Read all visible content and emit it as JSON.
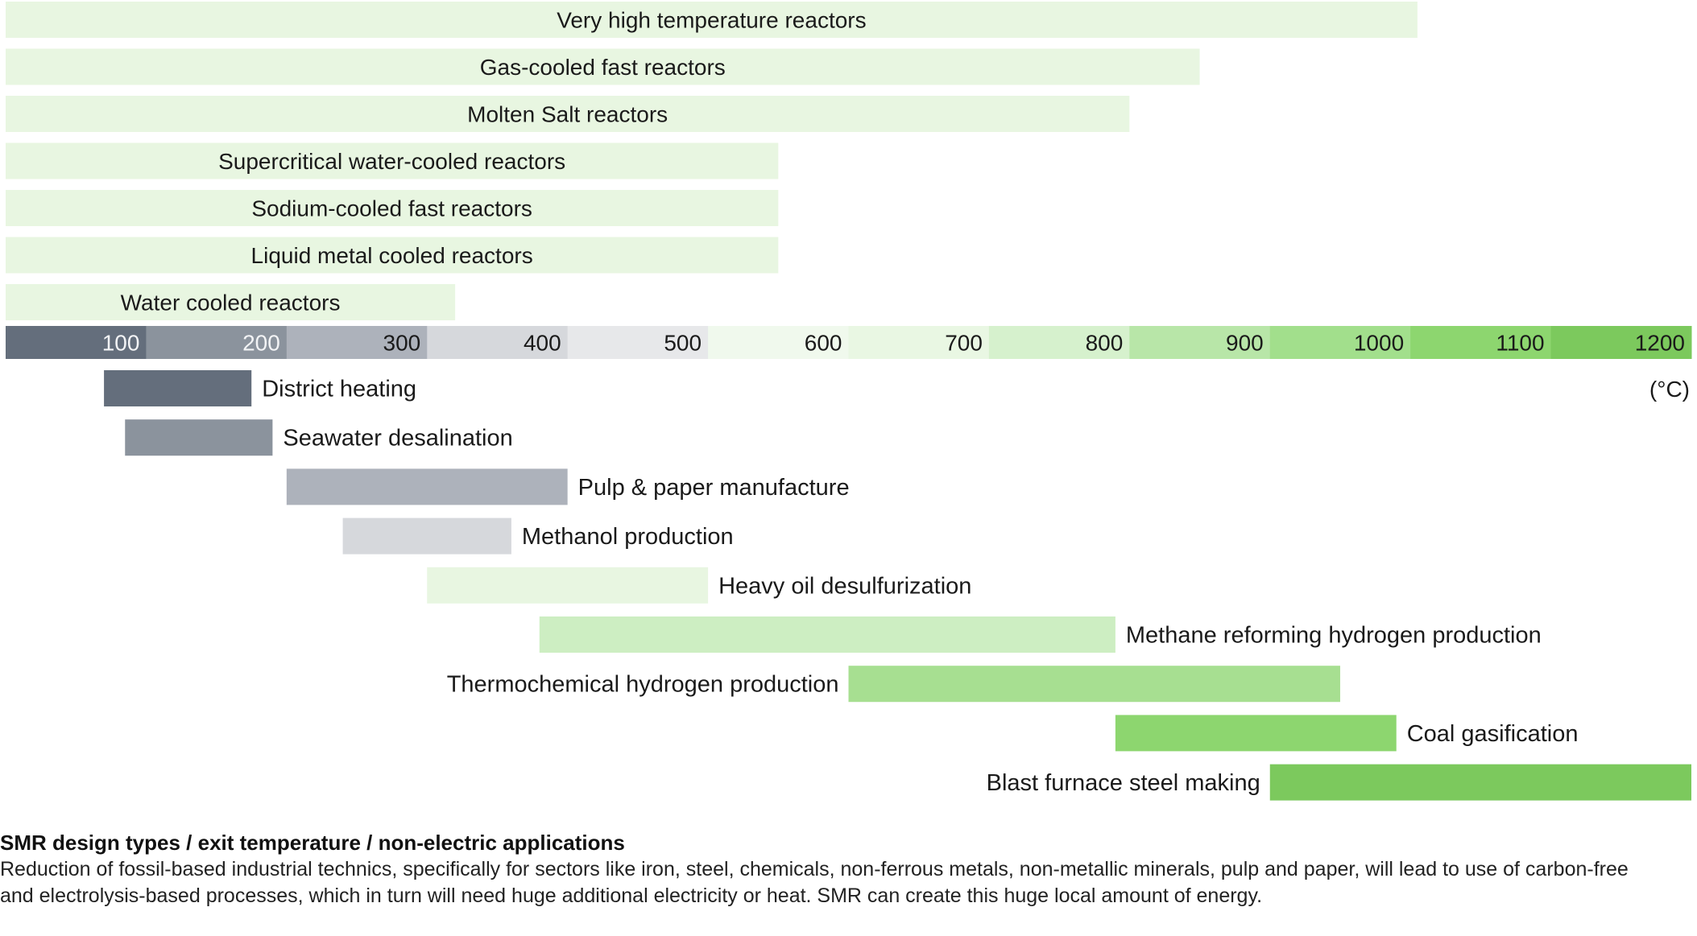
{
  "chart_data": {
    "type": "range-bar",
    "title": "SMR design types / exit temperature / non-electric applications",
    "unit_label": "(°C)",
    "xlim": [
      0,
      1200
    ],
    "scale": {
      "ticks": [
        100,
        200,
        300,
        400,
        500,
        600,
        700,
        800,
        900,
        1000,
        1100,
        1200
      ],
      "colors": [
        "#646e7c",
        "#8b939d",
        "#adb2bb",
        "#d6d8dc",
        "#e7e8ea",
        "#f0f9ed",
        "#e9f7e3",
        "#d6f1cd",
        "#b8e6a8",
        "#a2df8c",
        "#8dd66f",
        "#7cc95d"
      ]
    },
    "reactors": [
      {
        "name": "Very high temperature reactors",
        "start": 0,
        "end": 1005,
        "color": "#e8f6e1"
      },
      {
        "name": "Gas-cooled fast reactors",
        "start": 0,
        "end": 850,
        "color": "#e8f6e1"
      },
      {
        "name": "Molten Salt reactors",
        "start": 0,
        "end": 800,
        "color": "#e8f6e1"
      },
      {
        "name": "Supercritical water-cooled reactors",
        "start": 0,
        "end": 550,
        "color": "#e8f6e1"
      },
      {
        "name": "Sodium-cooled fast reactors",
        "start": 0,
        "end": 550,
        "color": "#e8f6e1"
      },
      {
        "name": "Liquid metal cooled reactors",
        "start": 0,
        "end": 550,
        "color": "#e8f6e1"
      },
      {
        "name": "Water cooled reactors",
        "start": 0,
        "end": 320,
        "color": "#e8f6e1"
      }
    ],
    "applications": [
      {
        "name": "District heating",
        "start": 70,
        "end": 175,
        "color": "#646e7c",
        "label_side": "right"
      },
      {
        "name": "Seawater desalination",
        "start": 85,
        "end": 190,
        "color": "#8b939d",
        "label_side": "right"
      },
      {
        "name": "Pulp & paper manufacture",
        "start": 200,
        "end": 400,
        "color": "#adb2bb",
        "label_side": "right"
      },
      {
        "name": "Methanol production",
        "start": 240,
        "end": 360,
        "color": "#d6d8dc",
        "label_side": "right"
      },
      {
        "name": "Heavy oil desulfurization",
        "start": 300,
        "end": 500,
        "color": "#e8f6e1",
        "label_side": "right"
      },
      {
        "name": "Methane reforming hydrogen production",
        "start": 380,
        "end": 790,
        "color": "#cdeec2",
        "label_side": "right"
      },
      {
        "name": "Thermochemical hydrogen production",
        "start": 600,
        "end": 950,
        "color": "#a7df91",
        "label_side": "left"
      },
      {
        "name": "Coal gasification",
        "start": 790,
        "end": 990,
        "color": "#8dd66f",
        "label_side": "right"
      },
      {
        "name": "Blast furnace steel making",
        "start": 900,
        "end": 1200,
        "color": "#7cc95d",
        "label_side": "left"
      }
    ]
  },
  "caption": {
    "title": "SMR design types / exit temperature / non-electric applications",
    "body": "Reduction of fossil-based industrial technics, specifically for sectors like iron, steel, chemicals, non-ferrous metals, non-metallic minerals, pulp and paper, will lead to use of carbon-free and electrolysis-based processes, which in turn will need huge additional electricity or heat. SMR can create this huge local amount of energy."
  }
}
